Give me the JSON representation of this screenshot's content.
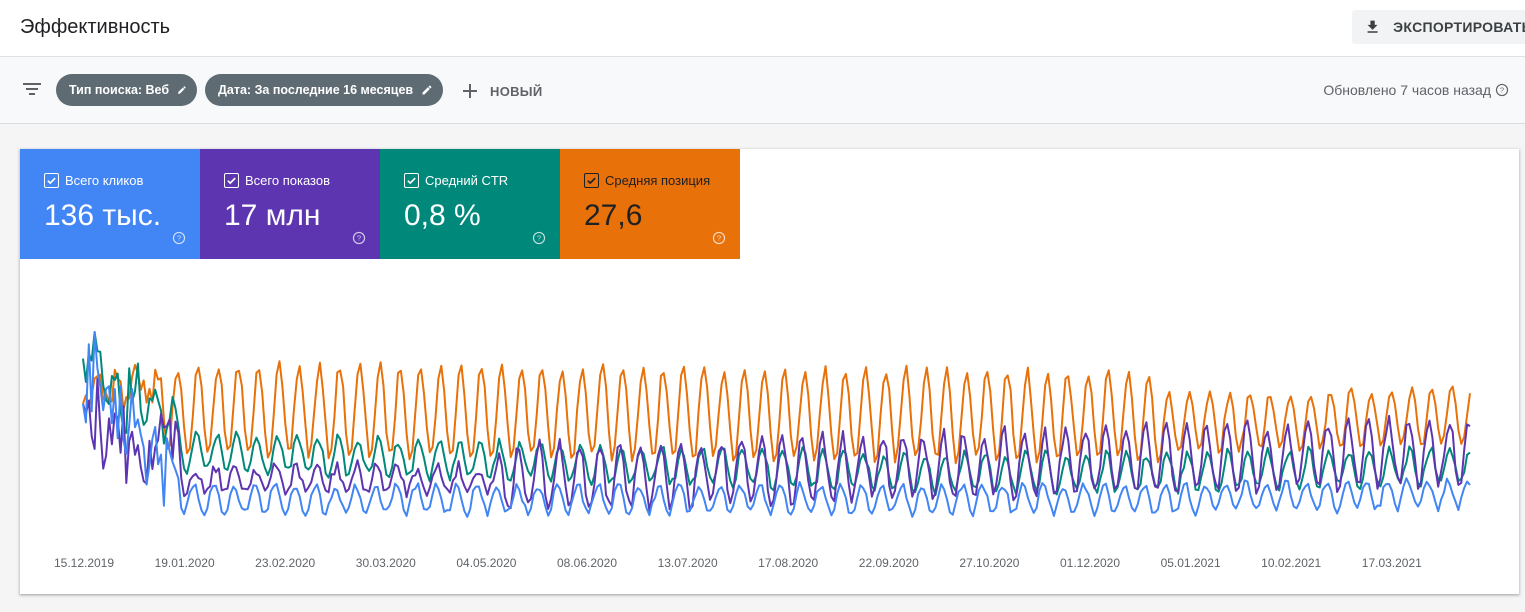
{
  "header": {
    "title": "Эффективность",
    "export_label": "ЭКСПОРТИРОВАТЬ"
  },
  "filters": {
    "chips": [
      {
        "label": "Тип поиска: Веб"
      },
      {
        "label": "Дата: За последние 16 месяцев"
      }
    ],
    "new_label": "НОВЫЙ",
    "updated_text": "Обновлено 7 часов назад"
  },
  "metrics": [
    {
      "label": "Всего кликов",
      "value": "136 тыс.",
      "color": "#4285f4",
      "checked": true
    },
    {
      "label": "Всего показов",
      "value": "17 млн",
      "color": "#5e35b1",
      "checked": true
    },
    {
      "label": "Средний CTR",
      "value": "0,8 %",
      "color": "#00897b",
      "checked": true
    },
    {
      "label": "Средняя позиция",
      "value": "27,6",
      "color": "#e8710a",
      "checked": true
    }
  ],
  "chart_data": {
    "type": "line",
    "x_ticks": [
      "15.12.2019",
      "19.01.2020",
      "23.02.2020",
      "30.03.2020",
      "04.05.2020",
      "08.06.2020",
      "13.07.2020",
      "17.08.2020",
      "22.09.2020",
      "27.10.2020",
      "01.12.2020",
      "05.01.2021",
      "10.02.2021",
      "17.03.2021"
    ],
    "x_range": [
      "15.12.2019",
      "08.04.2021"
    ],
    "series": [
      {
        "name": "Всего кликов",
        "color": "#4285f4"
      },
      {
        "name": "Всего показов",
        "color": "#5e35b1"
      },
      {
        "name": "Средний CTR",
        "color": "#00897b"
      },
      {
        "name": "Средняя позиция",
        "color": "#e8710a"
      }
    ],
    "grid": false
  }
}
